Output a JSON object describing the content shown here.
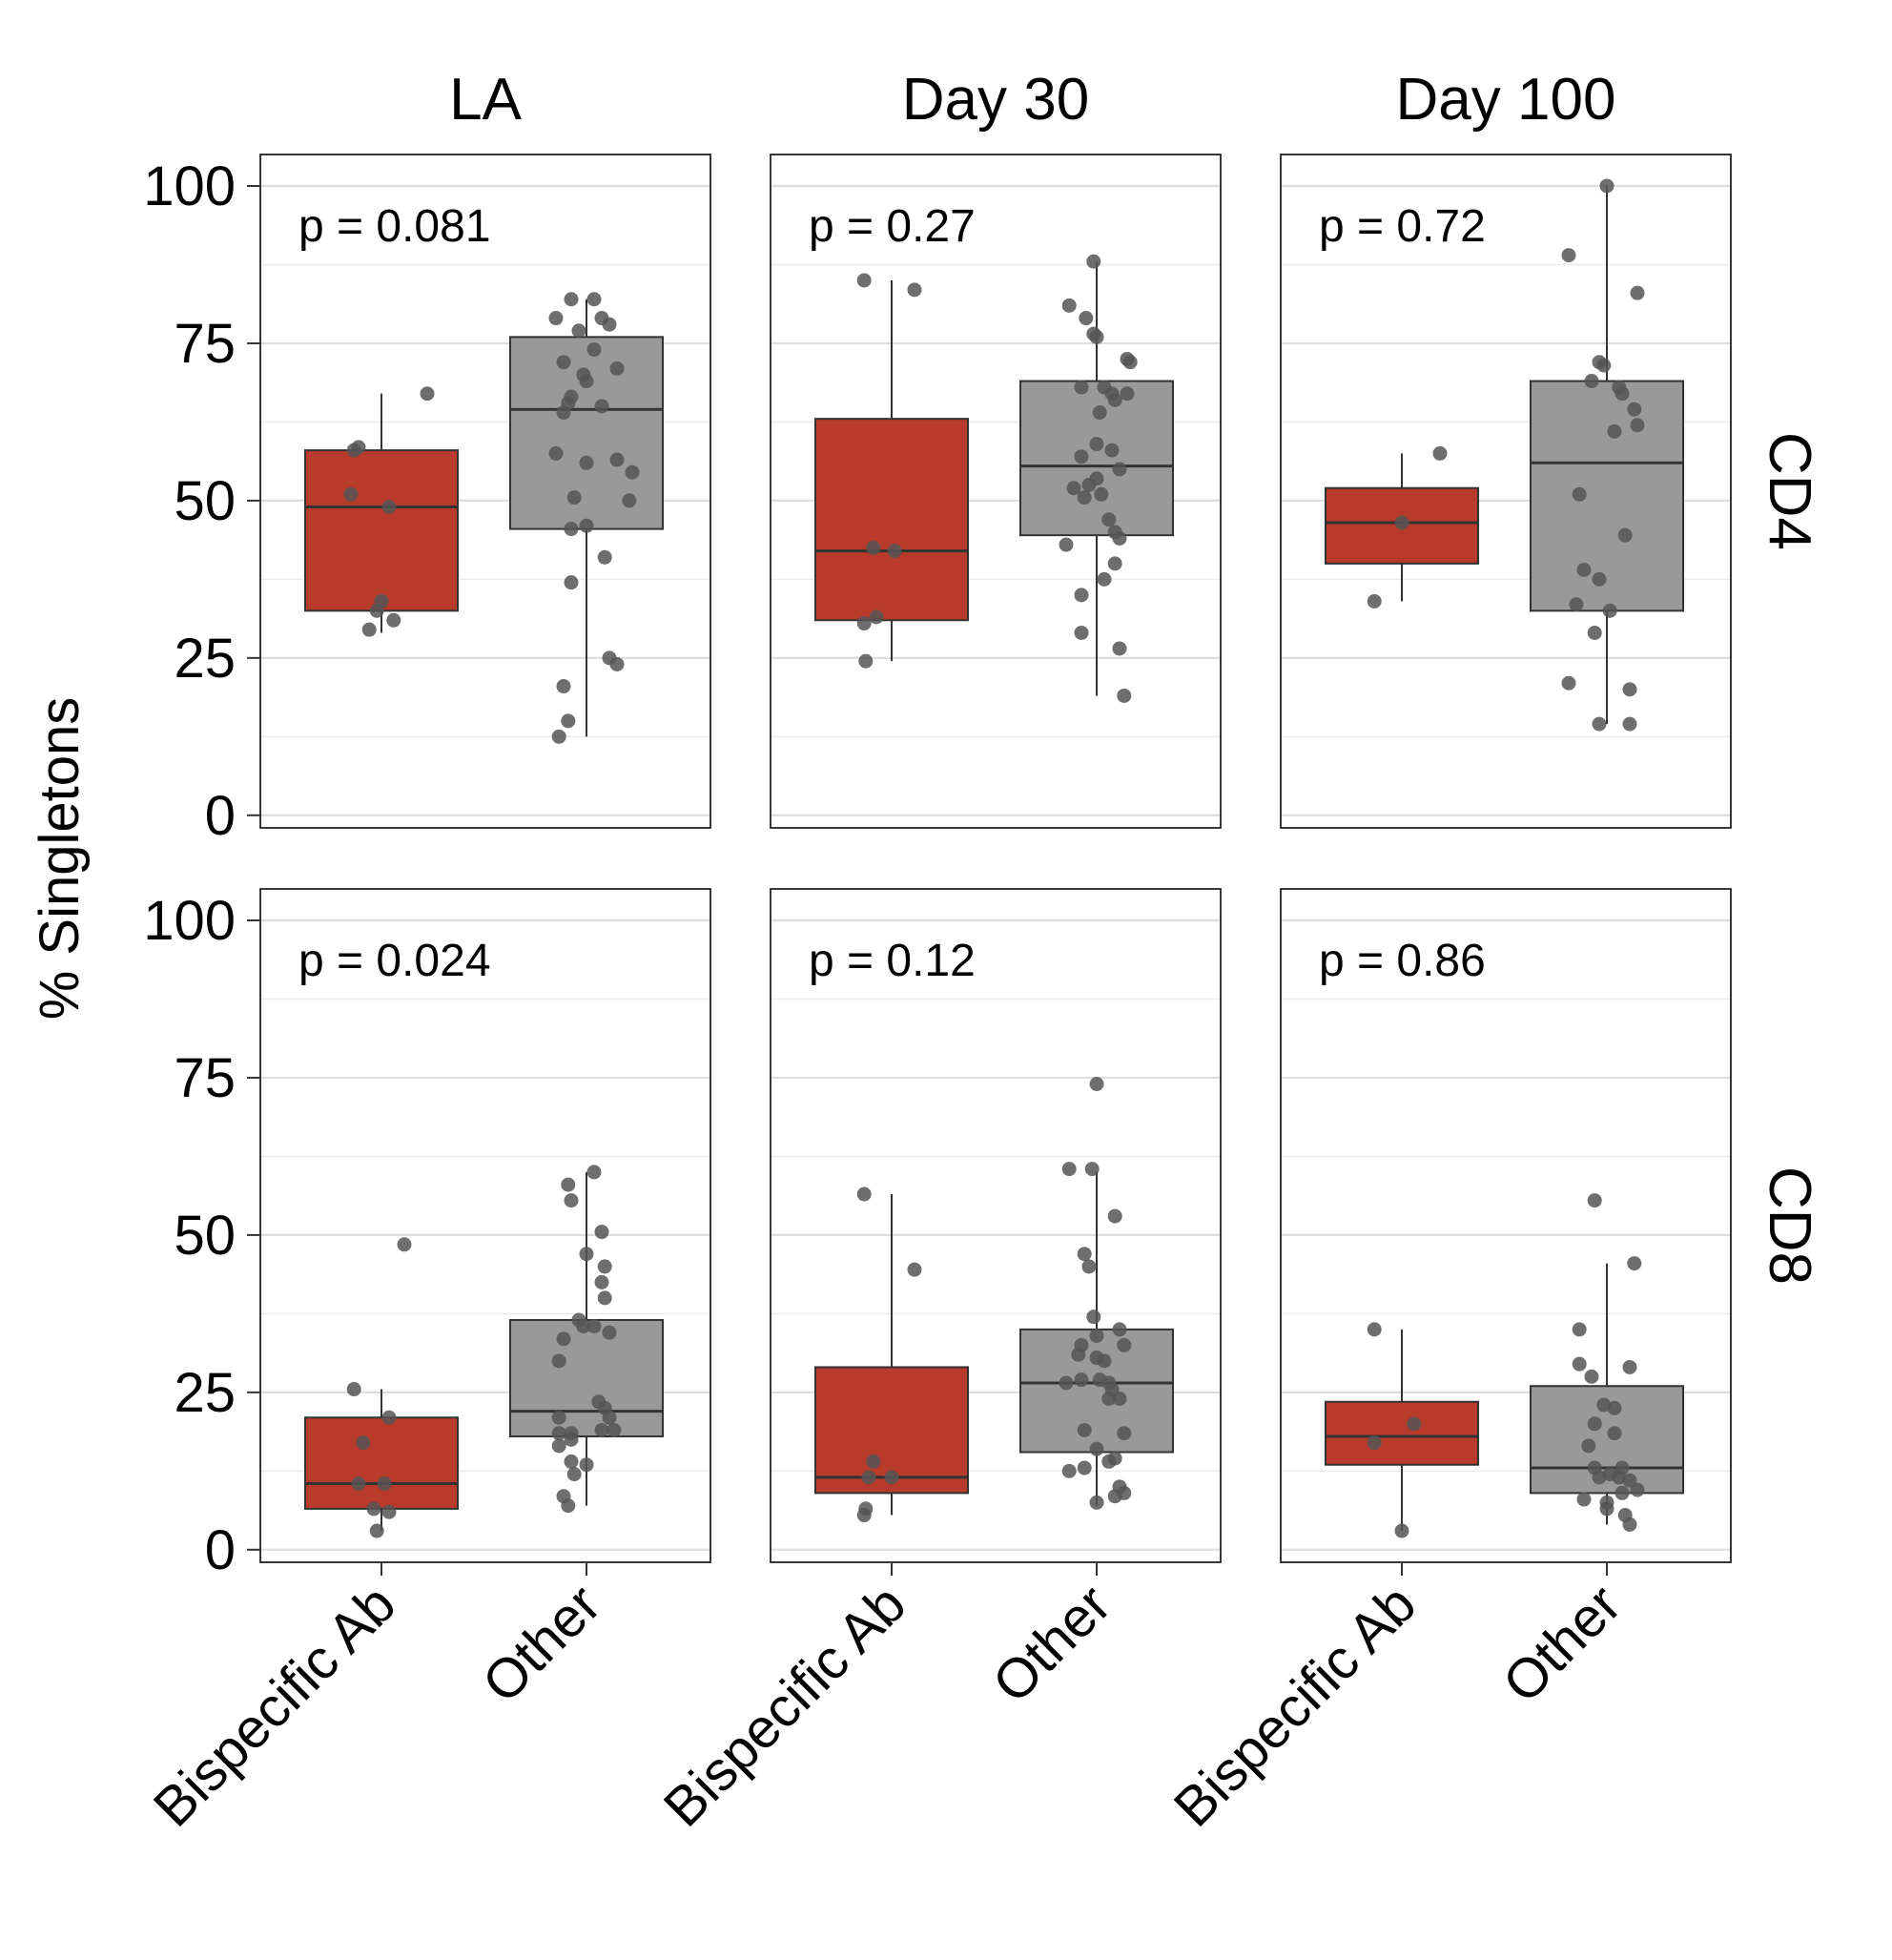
{
  "chart_data": {
    "type": "box",
    "ylabel": "% Singletons",
    "ylim": [
      -2,
      105
    ],
    "yticks": [
      0,
      25,
      50,
      75,
      100
    ],
    "grid": true,
    "categories": [
      "Bispecific Ab",
      "Other"
    ],
    "columns": [
      "LA",
      "Day 30",
      "Day 100"
    ],
    "rows": [
      "CD4",
      "CD8"
    ],
    "colors": {
      "Bispecific Ab": "#b83a2b",
      "Other": "#999999",
      "points": "#555555"
    },
    "panels": [
      {
        "row": "CD4",
        "col": "LA",
        "p_label": "p = 0.081",
        "boxes": [
          {
            "category": "Bispecific Ab",
            "q1": 32.5,
            "median": 49,
            "q3": 58,
            "whisker_low": 29,
            "whisker_high": 67,
            "points": [
              [
                -0.15,
                58.5
              ],
              [
                0.3,
                67
              ],
              [
                -0.2,
                51
              ],
              [
                0.05,
                49
              ],
              [
                0.0,
                34
              ],
              [
                -0.03,
                32.5
              ],
              [
                -0.08,
                29.5
              ],
              [
                0.08,
                31
              ],
              [
                -0.18,
                58
              ]
            ]
          },
          {
            "category": "Other",
            "q1": 45.5,
            "median": 64.5,
            "q3": 76,
            "whisker_low": 12.5,
            "whisker_high": 82,
            "points": [
              [
                -0.1,
                82
              ],
              [
                0.05,
                82
              ],
              [
                -0.2,
                79
              ],
              [
                0.1,
                79
              ],
              [
                0.15,
                78
              ],
              [
                -0.05,
                77
              ],
              [
                0.05,
                74
              ],
              [
                -0.15,
                72
              ],
              [
                0.2,
                71
              ],
              [
                -0.02,
                70
              ],
              [
                0.0,
                69
              ],
              [
                -0.1,
                66.5
              ],
              [
                -0.12,
                65.5
              ],
              [
                0.1,
                65
              ],
              [
                -0.15,
                64
              ],
              [
                -0.2,
                57.5
              ],
              [
                0.2,
                56.5
              ],
              [
                0.0,
                56
              ],
              [
                0.3,
                54.5
              ],
              [
                -0.08,
                50.5
              ],
              [
                0.28,
                50
              ],
              [
                0.0,
                46
              ],
              [
                -0.1,
                45.5
              ],
              [
                0.12,
                41
              ],
              [
                -0.1,
                37
              ],
              [
                0.15,
                25
              ],
              [
                0.2,
                24
              ],
              [
                -0.15,
                20.5
              ],
              [
                -0.12,
                15
              ],
              [
                -0.18,
                12.5
              ]
            ]
          }
        ]
      },
      {
        "row": "CD4",
        "col": "Day 30",
        "p_label": "p = 0.27",
        "boxes": [
          {
            "category": "Bispecific Ab",
            "q1": 31,
            "median": 42,
            "q3": 63,
            "whisker_low": 24.5,
            "whisker_high": 85,
            "points": [
              [
                -0.18,
                85
              ],
              [
                0.15,
                83.5
              ],
              [
                -0.12,
                42.5
              ],
              [
                0.02,
                42
              ],
              [
                -0.1,
                31.5
              ],
              [
                -0.18,
                30.5
              ],
              [
                -0.17,
                24.5
              ]
            ]
          },
          {
            "category": "Other",
            "q1": 44.5,
            "median": 55.5,
            "q3": 69,
            "whisker_low": 19,
            "whisker_high": 88,
            "points": [
              [
                -0.02,
                88
              ],
              [
                -0.18,
                81
              ],
              [
                -0.07,
                79
              ],
              [
                -0.02,
                76.5
              ],
              [
                0.0,
                76
              ],
              [
                0.2,
                72.5
              ],
              [
                0.22,
                72
              ],
              [
                -0.1,
                68
              ],
              [
                0.05,
                68
              ],
              [
                0.1,
                67
              ],
              [
                0.2,
                67
              ],
              [
                0.12,
                66
              ],
              [
                0.02,
                64
              ],
              [
                -0.1,
                57
              ],
              [
                0.1,
                58
              ],
              [
                0.0,
                59
              ],
              [
                0.15,
                55
              ],
              [
                0.0,
                53.5
              ],
              [
                -0.05,
                52.5
              ],
              [
                -0.15,
                52
              ],
              [
                0.03,
                51
              ],
              [
                -0.08,
                50.5
              ],
              [
                0.08,
                47
              ],
              [
                0.12,
                45
              ],
              [
                0.15,
                44
              ],
              [
                -0.2,
                43
              ],
              [
                0.12,
                40
              ],
              [
                0.05,
                37.5
              ],
              [
                -0.1,
                35
              ],
              [
                -0.1,
                29
              ],
              [
                0.15,
                26.5
              ],
              [
                0.18,
                19
              ]
            ]
          }
        ]
      },
      {
        "row": "CD4",
        "col": "Day 100",
        "p_label": "p = 0.72",
        "boxes": [
          {
            "category": "Bispecific Ab",
            "q1": 40,
            "median": 46.5,
            "q3": 52,
            "whisker_low": 34,
            "whisker_high": 57.5,
            "points": [
              [
                0.25,
                57.5
              ],
              [
                0.0,
                46.5
              ],
              [
                -0.18,
                34
              ]
            ]
          },
          {
            "category": "Other",
            "q1": 32.5,
            "median": 56,
            "q3": 69,
            "whisker_low": 14.5,
            "whisker_high": 100,
            "points": [
              [
                0.0,
                100
              ],
              [
                -0.25,
                89
              ],
              [
                0.2,
                83
              ],
              [
                -0.05,
                72
              ],
              [
                -0.02,
                71.5
              ],
              [
                -0.1,
                69
              ],
              [
                0.08,
                68
              ],
              [
                0.1,
                67
              ],
              [
                0.18,
                64.5
              ],
              [
                0.2,
                62
              ],
              [
                0.05,
                61
              ],
              [
                -0.18,
                51
              ],
              [
                0.12,
                44.5
              ],
              [
                -0.15,
                39
              ],
              [
                -0.05,
                37.5
              ],
              [
                -0.2,
                33.5
              ],
              [
                0.02,
                32.5
              ],
              [
                -0.08,
                29
              ],
              [
                -0.25,
                21
              ],
              [
                0.15,
                20
              ],
              [
                -0.05,
                14.5
              ],
              [
                0.15,
                14.5
              ]
            ]
          }
        ]
      },
      {
        "row": "CD8",
        "col": "LA",
        "p_label": "p = 0.024",
        "boxes": [
          {
            "category": "Bispecific Ab",
            "q1": 6.5,
            "median": 10.5,
            "q3": 21,
            "whisker_low": 3,
            "whisker_high": 25.5,
            "points": [
              [
                0.15,
                48.5
              ],
              [
                -0.18,
                25.5
              ],
              [
                0.05,
                21
              ],
              [
                -0.12,
                17
              ],
              [
                -0.15,
                10.5
              ],
              [
                0.02,
                10.5
              ],
              [
                -0.05,
                6.5
              ],
              [
                0.05,
                6
              ],
              [
                -0.03,
                3
              ]
            ]
          },
          {
            "category": "Other",
            "q1": 18,
            "median": 22,
            "q3": 36.5,
            "whisker_low": 7,
            "whisker_high": 60,
            "points": [
              [
                0.05,
                60
              ],
              [
                -0.12,
                58
              ],
              [
                -0.1,
                55.5
              ],
              [
                0.1,
                50.5
              ],
              [
                0.0,
                47
              ],
              [
                0.12,
                45
              ],
              [
                0.1,
                42.5
              ],
              [
                0.12,
                40
              ],
              [
                -0.05,
                36.5
              ],
              [
                -0.02,
                35.5
              ],
              [
                0.05,
                35.5
              ],
              [
                0.15,
                34.5
              ],
              [
                -0.15,
                33.5
              ],
              [
                -0.18,
                30
              ],
              [
                0.08,
                23.5
              ],
              [
                0.12,
                22.5
              ],
              [
                0.15,
                21
              ],
              [
                -0.18,
                21
              ],
              [
                0.1,
                19
              ],
              [
                0.18,
                19
              ],
              [
                -0.1,
                18.5
              ],
              [
                -0.18,
                18.5
              ],
              [
                -0.1,
                17.5
              ],
              [
                -0.18,
                16.5
              ],
              [
                -0.1,
                14
              ],
              [
                0.0,
                13.5
              ],
              [
                -0.08,
                12
              ],
              [
                -0.15,
                8.5
              ],
              [
                -0.12,
                7
              ]
            ]
          }
        ]
      },
      {
        "row": "CD8",
        "col": "Day 30",
        "p_label": "p = 0.12",
        "boxes": [
          {
            "category": "Bispecific Ab",
            "q1": 9,
            "median": 11.5,
            "q3": 29,
            "whisker_low": 5.5,
            "whisker_high": 56.5,
            "points": [
              [
                -0.18,
                56.5
              ],
              [
                0.15,
                44.5
              ],
              [
                -0.12,
                14
              ],
              [
                -0.15,
                11.5
              ],
              [
                0.0,
                11.5
              ],
              [
                -0.17,
                6.5
              ],
              [
                -0.18,
                5.5
              ]
            ]
          },
          {
            "category": "Other",
            "q1": 15.5,
            "median": 26.5,
            "q3": 35,
            "whisker_low": 7,
            "whisker_high": 60,
            "points": [
              [
                0.0,
                74
              ],
              [
                -0.18,
                60.5
              ],
              [
                -0.03,
                60.5
              ],
              [
                0.12,
                53
              ],
              [
                -0.08,
                47
              ],
              [
                -0.05,
                45
              ],
              [
                -0.02,
                37
              ],
              [
                0.15,
                35
              ],
              [
                0.0,
                34
              ],
              [
                -0.1,
                32.5
              ],
              [
                0.18,
                32.5
              ],
              [
                -0.12,
                31
              ],
              [
                0.0,
                30.5
              ],
              [
                0.05,
                30
              ],
              [
                -0.1,
                27
              ],
              [
                0.02,
                27
              ],
              [
                0.08,
                26.5
              ],
              [
                -0.2,
                26.5
              ],
              [
                0.1,
                25.5
              ],
              [
                0.08,
                24
              ],
              [
                0.15,
                24
              ],
              [
                -0.08,
                19
              ],
              [
                0.18,
                18.5
              ],
              [
                0.0,
                16
              ],
              [
                0.12,
                14.5
              ],
              [
                0.08,
                14
              ],
              [
                -0.08,
                13
              ],
              [
                -0.18,
                12.5
              ],
              [
                0.15,
                10
              ],
              [
                0.18,
                9
              ],
              [
                0.12,
                8.5
              ],
              [
                0.0,
                7.5
              ]
            ]
          }
        ]
      },
      {
        "row": "CD8",
        "col": "Day 100",
        "p_label": "p = 0.86",
        "boxes": [
          {
            "category": "Bispecific Ab",
            "q1": 13.5,
            "median": 18,
            "q3": 23.5,
            "whisker_low": 3,
            "whisker_high": 35,
            "points": [
              [
                -0.18,
                35
              ],
              [
                0.08,
                20
              ],
              [
                -0.18,
                17
              ],
              [
                0.0,
                3
              ]
            ]
          },
          {
            "category": "Other",
            "q1": 9,
            "median": 13,
            "q3": 26,
            "whisker_low": 4,
            "whisker_high": 45.5,
            "points": [
              [
                -0.08,
                55.5
              ],
              [
                0.18,
                45.5
              ],
              [
                -0.18,
                35
              ],
              [
                -0.18,
                29.5
              ],
              [
                0.15,
                29
              ],
              [
                -0.1,
                27.5
              ],
              [
                -0.02,
                23
              ],
              [
                0.05,
                22.5
              ],
              [
                -0.08,
                20
              ],
              [
                0.05,
                18.5
              ],
              [
                -0.12,
                16.5
              ],
              [
                0.1,
                13
              ],
              [
                -0.08,
                13
              ],
              [
                0.02,
                12
              ],
              [
                -0.05,
                11.5
              ],
              [
                0.08,
                11.5
              ],
              [
                0.15,
                11
              ],
              [
                0.2,
                9.5
              ],
              [
                0.1,
                9
              ],
              [
                -0.15,
                8
              ],
              [
                0.0,
                7.5
              ],
              [
                0.0,
                6.5
              ],
              [
                0.12,
                5.5
              ],
              [
                0.15,
                4
              ]
            ]
          }
        ]
      }
    ]
  }
}
